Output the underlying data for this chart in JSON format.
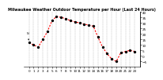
{
  "title": "Milwaukee Weather Outdoor Temperature per Hour (Last 24 Hours)",
  "hours": [
    0,
    1,
    2,
    3,
    4,
    5,
    6,
    7,
    8,
    9,
    10,
    11,
    12,
    13,
    14,
    15,
    16,
    17,
    18,
    19,
    20,
    21,
    22,
    23
  ],
  "temps": [
    12,
    10,
    8,
    15,
    22,
    32,
    36,
    35,
    34,
    32,
    31,
    30,
    29,
    28,
    27,
    17,
    8,
    2,
    -3,
    -5,
    3,
    4,
    5,
    4
  ],
  "line_color": "#ff0000",
  "dot_color": "#000000",
  "bg_color": "#ffffff",
  "grid_color": "#888888",
  "ylim": [
    -10,
    40
  ],
  "yticks": [
    -5,
    0,
    5,
    10,
    15,
    20,
    25,
    30,
    35,
    40
  ],
  "title_fontsize": 3.5,
  "tick_fontsize": 3.0,
  "linewidth": 0.8,
  "dotsize": 2.0
}
